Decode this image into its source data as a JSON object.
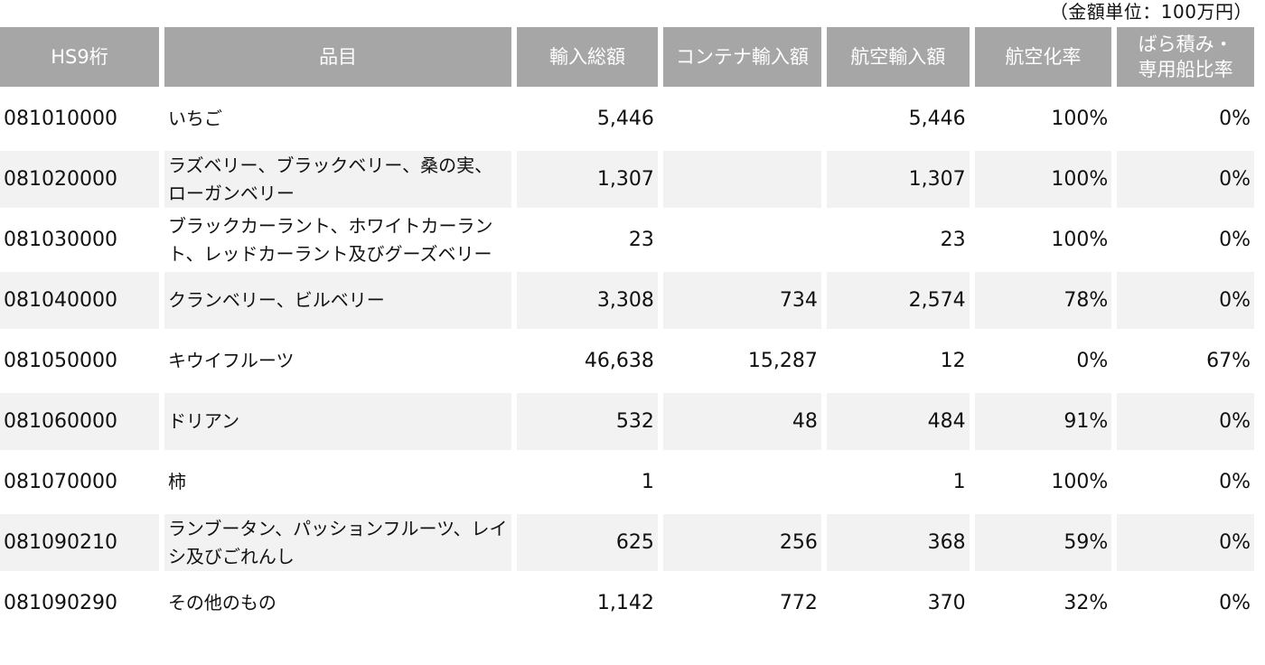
{
  "unit_note": "（金額単位：100万円）",
  "headers": {
    "hs_code": "HS9桁",
    "item": "品目",
    "total_import": "輸入総額",
    "container_import": "コンテナ輸入額",
    "air_import": "航空輸入額",
    "air_rate": "航空化率",
    "bulk_rate_line1": "ばら積み・",
    "bulk_rate_line2": "専用船比率"
  },
  "rows": [
    {
      "code": "081010000",
      "item": "いちご",
      "total": "5,446",
      "container": "",
      "air": "5,446",
      "air_rate": "100%",
      "bulk_rate": "0%"
    },
    {
      "code": "081020000",
      "item": "ラズベリー、ブラックベリー、桑の実、ローガンベリー",
      "total": "1,307",
      "container": "",
      "air": "1,307",
      "air_rate": "100%",
      "bulk_rate": "0%"
    },
    {
      "code": "081030000",
      "item": "ブラックカーラント、ホワイトカーラント、レッドカーラント及びグーズベリー",
      "total": "23",
      "container": "",
      "air": "23",
      "air_rate": "100%",
      "bulk_rate": "0%"
    },
    {
      "code": "081040000",
      "item": "クランベリー、ビルベリー",
      "total": "3,308",
      "container": "734",
      "air": "2,574",
      "air_rate": "78%",
      "bulk_rate": "0%"
    },
    {
      "code": "081050000",
      "item": "キウイフルーツ",
      "total": "46,638",
      "container": "15,287",
      "air": "12",
      "air_rate": "0%",
      "bulk_rate": "67%"
    },
    {
      "code": "081060000",
      "item": "ドリアン",
      "total": "532",
      "container": "48",
      "air": "484",
      "air_rate": "91%",
      "bulk_rate": "0%"
    },
    {
      "code": "081070000",
      "item": "柿",
      "total": "1",
      "container": "",
      "air": "1",
      "air_rate": "100%",
      "bulk_rate": "0%"
    },
    {
      "code": "081090210",
      "item": "ランブータン、パッションフルーツ、レイシ及びごれんし",
      "total": "625",
      "container": "256",
      "air": "368",
      "air_rate": "59%",
      "bulk_rate": "0%"
    },
    {
      "code": "081090290",
      "item": "その他のもの",
      "total": "1,142",
      "container": "772",
      "air": "370",
      "air_rate": "32%",
      "bulk_rate": "0%"
    }
  ]
}
